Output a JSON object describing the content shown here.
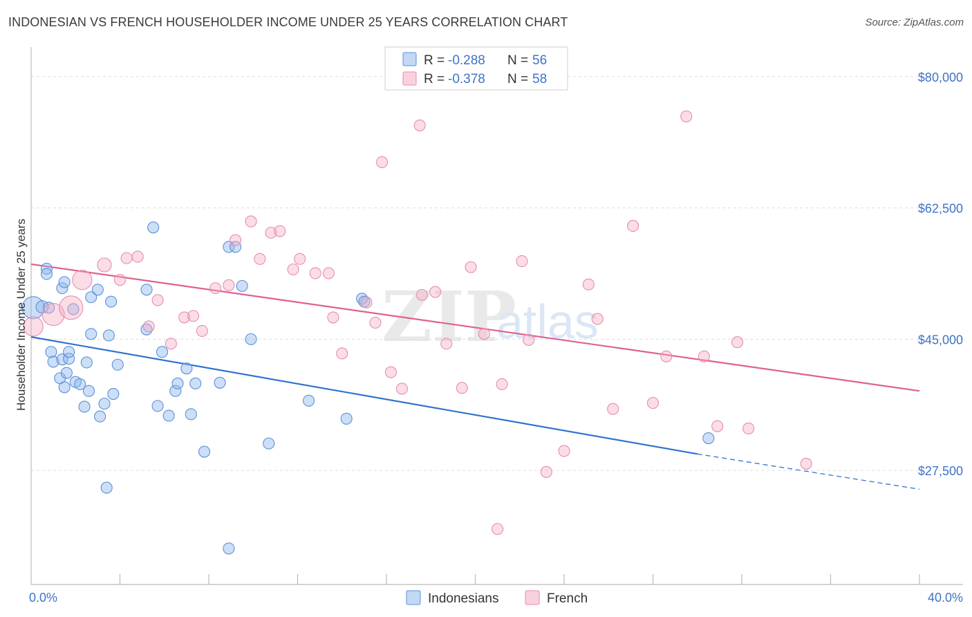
{
  "title": "INDONESIAN VS FRENCH HOUSEHOLDER INCOME UNDER 25 YEARS CORRELATION CHART",
  "source": "Source: ZipAtlas.com",
  "watermark": {
    "zip": "ZIP",
    "atlas": "atlas"
  },
  "colors": {
    "blue": "#5b8fd6",
    "blue_line": "#2f72d0",
    "pink": "#e68cac",
    "pink_line": "#e0608c",
    "tick": "#3f73c8"
  },
  "legend": {
    "r_label": "R = ",
    "n_label": "N = ",
    "rows": [
      {
        "r": "-0.288",
        "n": "56"
      },
      {
        "r": "-0.378",
        "n": "58"
      }
    ]
  },
  "chart_data": {
    "type": "scatter",
    "title": "INDONESIAN VS FRENCH HOUSEHOLDER INCOME UNDER 25 YEARS CORRELATION CHART",
    "xlabel": "",
    "ylabel": "Householder Income Under 25 years",
    "xlim": [
      0,
      40
    ],
    "ylim": [
      12300,
      83300
    ],
    "x_tick_labels": [
      "0.0%",
      "40.0%"
    ],
    "x_tick_values": [
      0,
      40
    ],
    "y_tick_labels": [
      "$80,000",
      "$62,500",
      "$45,000",
      "$27,500"
    ],
    "y_tick_values": [
      80000,
      62500,
      45000,
      27500
    ],
    "legend_position": "top-center",
    "series": [
      {
        "name": "Indonesians",
        "color": "#5b8fd6",
        "trend": {
          "x0": 0,
          "y0": 45300,
          "x1": 30,
          "y1": 29700,
          "dashed_to_x": 40,
          "dashed_to_y": 25000
        },
        "points": [
          [
            0.1,
            49200,
            16
          ],
          [
            0.5,
            49300,
            9
          ],
          [
            0.7,
            54400,
            8
          ],
          [
            0.7,
            53700,
            8
          ],
          [
            0.8,
            49200,
            8
          ],
          [
            0.9,
            43300,
            8
          ],
          [
            1.0,
            42000,
            8
          ],
          [
            1.3,
            39800,
            8
          ],
          [
            1.4,
            42300,
            8
          ],
          [
            1.4,
            51800,
            8
          ],
          [
            1.5,
            52600,
            8
          ],
          [
            1.5,
            38600,
            8
          ],
          [
            1.6,
            40500,
            8
          ],
          [
            1.7,
            42400,
            8
          ],
          [
            1.7,
            43300,
            8
          ],
          [
            1.9,
            49000,
            8
          ],
          [
            2.0,
            39300,
            8
          ],
          [
            2.2,
            39000,
            8
          ],
          [
            2.4,
            36000,
            8
          ],
          [
            2.5,
            41900,
            8
          ],
          [
            2.6,
            38100,
            8
          ],
          [
            2.7,
            50600,
            8
          ],
          [
            2.7,
            45700,
            8
          ],
          [
            3.0,
            51600,
            8
          ],
          [
            3.1,
            34700,
            8
          ],
          [
            3.3,
            36400,
            8
          ],
          [
            3.4,
            25200,
            8
          ],
          [
            3.5,
            45500,
            8
          ],
          [
            3.6,
            50000,
            8
          ],
          [
            3.7,
            37700,
            8
          ],
          [
            3.9,
            41600,
            8
          ],
          [
            5.2,
            46300,
            8
          ],
          [
            5.2,
            51600,
            8
          ],
          [
            5.5,
            59900,
            8
          ],
          [
            5.7,
            36100,
            8
          ],
          [
            5.9,
            43300,
            8
          ],
          [
            6.2,
            34800,
            8
          ],
          [
            6.5,
            38100,
            8
          ],
          [
            6.6,
            39100,
            8
          ],
          [
            7.0,
            41100,
            8
          ],
          [
            7.2,
            35000,
            8
          ],
          [
            7.4,
            39100,
            8
          ],
          [
            7.8,
            30000,
            8
          ],
          [
            8.5,
            39200,
            8
          ],
          [
            8.9,
            17100,
            8
          ],
          [
            8.9,
            57300,
            8
          ],
          [
            9.2,
            57300,
            8
          ],
          [
            9.5,
            52100,
            8
          ],
          [
            9.9,
            45000,
            8
          ],
          [
            10.7,
            31100,
            8
          ],
          [
            12.5,
            36800,
            8
          ],
          [
            14.2,
            34400,
            8
          ],
          [
            14.9,
            50400,
            8
          ],
          [
            15.0,
            50000,
            8
          ],
          [
            30.5,
            31800,
            8
          ]
        ]
      },
      {
        "name": "French",
        "color": "#e68cac",
        "trend": {
          "x0": 0,
          "y0": 55000,
          "x1": 40,
          "y1": 38100
        },
        "points": [
          [
            0.1,
            46700,
            14
          ],
          [
            1.0,
            48300,
            16
          ],
          [
            1.8,
            49200,
            17
          ],
          [
            2.3,
            52900,
            14
          ],
          [
            3.3,
            54900,
            10
          ],
          [
            4.0,
            52900,
            8
          ],
          [
            4.3,
            55800,
            8
          ],
          [
            4.8,
            56000,
            8
          ],
          [
            5.3,
            46700,
            8
          ],
          [
            5.7,
            50200,
            8
          ],
          [
            6.3,
            44400,
            8
          ],
          [
            6.9,
            47900,
            8
          ],
          [
            7.3,
            48100,
            8
          ],
          [
            7.7,
            46100,
            8
          ],
          [
            8.3,
            51800,
            8
          ],
          [
            8.9,
            52200,
            8
          ],
          [
            9.2,
            58200,
            8
          ],
          [
            9.9,
            60700,
            8
          ],
          [
            10.3,
            55700,
            8
          ],
          [
            10.8,
            59200,
            8
          ],
          [
            11.2,
            59400,
            8
          ],
          [
            11.8,
            54300,
            8
          ],
          [
            12.1,
            55700,
            8
          ],
          [
            12.8,
            53800,
            8
          ],
          [
            13.4,
            53800,
            8
          ],
          [
            13.6,
            47900,
            8
          ],
          [
            14.0,
            43100,
            8
          ],
          [
            15.1,
            49900,
            8
          ],
          [
            15.5,
            47200,
            8
          ],
          [
            15.8,
            68600,
            8
          ],
          [
            16.2,
            40600,
            8
          ],
          [
            16.7,
            38400,
            8
          ],
          [
            17.5,
            73500,
            8
          ],
          [
            17.6,
            50900,
            8
          ],
          [
            18.2,
            51300,
            8
          ],
          [
            18.7,
            44400,
            8
          ],
          [
            19.4,
            38500,
            8
          ],
          [
            19.8,
            54600,
            8
          ],
          [
            20.4,
            45700,
            8
          ],
          [
            21.0,
            19700,
            8
          ],
          [
            21.2,
            39000,
            8
          ],
          [
            22.1,
            55400,
            8
          ],
          [
            22.4,
            44900,
            8
          ],
          [
            23.2,
            27300,
            8
          ],
          [
            24.0,
            30100,
            8
          ],
          [
            25.1,
            52300,
            8
          ],
          [
            25.5,
            47700,
            8
          ],
          [
            26.2,
            35700,
            8
          ],
          [
            27.1,
            60100,
            8
          ],
          [
            28.0,
            36500,
            8
          ],
          [
            28.6,
            42700,
            8
          ],
          [
            29.5,
            74700,
            8
          ],
          [
            30.3,
            42700,
            8
          ],
          [
            30.9,
            33400,
            8
          ],
          [
            31.8,
            44600,
            8
          ],
          [
            32.3,
            33100,
            8
          ],
          [
            34.9,
            28400,
            8
          ]
        ]
      }
    ]
  }
}
